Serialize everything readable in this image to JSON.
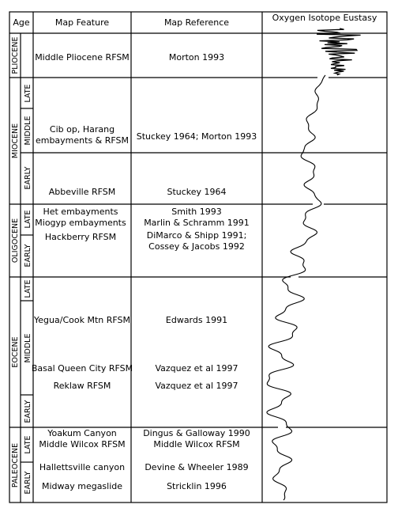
{
  "headers": {
    "age": "Age",
    "feature": "Map Feature",
    "reference": "Map Reference",
    "eustasy": "Oxygen Isotope Eustasy"
  },
  "epochs": [
    {
      "name": "PLIOCENE",
      "sub": []
    },
    {
      "name": "MIOCENE",
      "sub": [
        "LATE",
        "MIDDLE",
        "EARLY"
      ]
    },
    {
      "name": "OLIGOCENE",
      "sub": [
        "LATE",
        "EARLY"
      ]
    },
    {
      "name": "EOCENE",
      "sub": [
        "LATE",
        "MIDDLE",
        "EARLY"
      ]
    },
    {
      "name": "PALEOCENE",
      "sub": [
        "LATE",
        "EARLY"
      ]
    }
  ],
  "rows": [
    {
      "feature": [
        "Middle Pliocene RFSM"
      ],
      "reference": [
        "Morton 1993"
      ]
    },
    {
      "feature": [
        "Cib op, Harang",
        "embayments & RFSM"
      ],
      "reference": [
        "Stuckey 1964; Morton 1993"
      ]
    },
    {
      "feature": [
        "Abbeville RFSM"
      ],
      "reference": [
        "Stuckey 1964"
      ]
    },
    {
      "feature": [
        "Het embayments"
      ],
      "reference": [
        "Smith 1993"
      ]
    },
    {
      "feature": [
        "Miogyp embayments"
      ],
      "reference": [
        "Marlin & Schramm 1991"
      ]
    },
    {
      "feature": [
        "Hackberry RFSM"
      ],
      "reference": [
        "DiMarco & Shipp 1991;",
        "Cossey & Jacobs 1992"
      ]
    },
    {
      "feature": [
        "Yegua/Cook Mtn RFSM"
      ],
      "reference": [
        "Edwards 1991"
      ]
    },
    {
      "feature": [
        "Basal Queen City RFSM"
      ],
      "reference": [
        "Vazquez et al 1997"
      ]
    },
    {
      "feature": [
        "Reklaw RFSM"
      ],
      "reference": [
        "Vazquez et al 1997"
      ]
    },
    {
      "feature": [
        "Yoakum Canyon",
        "Middle Wilcox RFSM"
      ],
      "reference": [
        "Dingus & Galloway 1990",
        "Middle Wilcox RFSM"
      ]
    },
    {
      "feature": [
        "Hallettsville canyon"
      ],
      "reference": [
        "Devine & Wheeler 1989"
      ]
    },
    {
      "feature": [
        "Midway megaslide"
      ],
      "reference": [
        "Stricklin 1996"
      ]
    }
  ]
}
